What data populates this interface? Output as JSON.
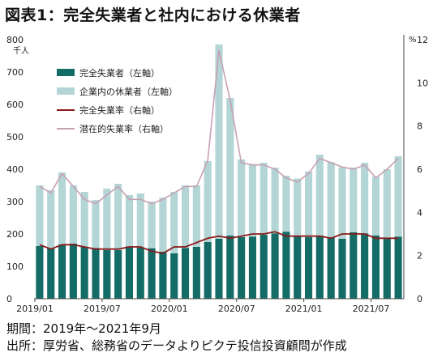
{
  "title": "図表1：完全失業者と社内における休業者",
  "period_note": "期間：2019年～2021年9月",
  "source_note": "出所：厚労省、総務省のデータよりピクテ投信投資顧問が作成",
  "colors": {
    "unemployed_bar": "#136c66",
    "furlough_bar": "#b3d5d5",
    "unemployment_rate_line": "#8b1a1a",
    "latent_rate_line": "#c8a0b4",
    "axis": "#444444"
  },
  "chart_data": {
    "type": "bar",
    "stacked": true,
    "title": "図表1：完全失業者と社内における休業者",
    "left_axis": {
      "unit": "千人",
      "ylim": [
        0,
        800
      ],
      "ticks": [
        0,
        100,
        200,
        300,
        400,
        500,
        600,
        700,
        800
      ]
    },
    "right_axis": {
      "unit": "%",
      "ylim": [
        0,
        12
      ],
      "ticks": [
        0,
        2,
        4,
        6,
        8,
        10,
        12
      ]
    },
    "x_tick_labels": [
      {
        "index": 0,
        "label": "2019/01"
      },
      {
        "index": 6,
        "label": "2019/07"
      },
      {
        "index": 12,
        "label": "2020/01"
      },
      {
        "index": 18,
        "label": "2020/07"
      },
      {
        "index": 24,
        "label": "2021/01"
      },
      {
        "index": 30,
        "label": "2021/07"
      }
    ],
    "categories": [
      "2019/01",
      "2019/02",
      "2019/03",
      "2019/04",
      "2019/05",
      "2019/06",
      "2019/07",
      "2019/08",
      "2019/09",
      "2019/10",
      "2019/11",
      "2019/12",
      "2020/01",
      "2020/02",
      "2020/03",
      "2020/04",
      "2020/05",
      "2020/06",
      "2020/07",
      "2020/08",
      "2020/09",
      "2020/10",
      "2020/11",
      "2020/12",
      "2021/01",
      "2021/02",
      "2021/03",
      "2021/04",
      "2021/05",
      "2021/06",
      "2021/07",
      "2021/08",
      "2021/09"
    ],
    "legend_placement": "top-left",
    "grid": false,
    "series": [
      {
        "name": "完全失業者（左軸）",
        "type": "bar",
        "axis": "left",
        "values": [
          163,
          155,
          168,
          170,
          160,
          157,
          150,
          150,
          162,
          158,
          156,
          145,
          140,
          157,
          160,
          175,
          185,
          195,
          190,
          192,
          198,
          202,
          207,
          192,
          190,
          195,
          190,
          185,
          205,
          202,
          195,
          188,
          192
        ]
      },
      {
        "name": "企業内の休業者（左軸）",
        "type": "bar",
        "axis": "left",
        "values": [
          187,
          180,
          222,
          180,
          170,
          148,
          190,
          205,
          158,
          167,
          144,
          167,
          190,
          193,
          190,
          250,
          600,
          425,
          240,
          223,
          222,
          203,
          173,
          179,
          203,
          250,
          232,
          221,
          200,
          218,
          182,
          212,
          248
        ]
      },
      {
        "name": "完全失業率（右軸）",
        "type": "line",
        "axis": "right",
        "values": [
          2.5,
          2.3,
          2.5,
          2.5,
          2.4,
          2.3,
          2.3,
          2.3,
          2.4,
          2.4,
          2.2,
          2.1,
          2.4,
          2.4,
          2.6,
          2.8,
          2.9,
          2.8,
          2.9,
          3.0,
          3.0,
          3.1,
          2.9,
          2.9,
          2.9,
          2.9,
          2.8,
          3.0,
          3.0,
          3.0,
          2.8,
          2.8,
          2.8
        ]
      },
      {
        "name": "潜在的失業率（右軸）",
        "type": "line",
        "axis": "right",
        "values": [
          5.2,
          4.9,
          5.8,
          5.2,
          4.6,
          4.4,
          4.8,
          5.2,
          4.6,
          4.6,
          4.4,
          4.6,
          4.9,
          5.2,
          5.2,
          6.4,
          11.5,
          9.2,
          6.3,
          6.2,
          6.2,
          6.0,
          5.6,
          5.4,
          5.8,
          6.5,
          6.3,
          6.1,
          6.0,
          6.2,
          5.6,
          6.0,
          6.5
        ]
      }
    ]
  }
}
